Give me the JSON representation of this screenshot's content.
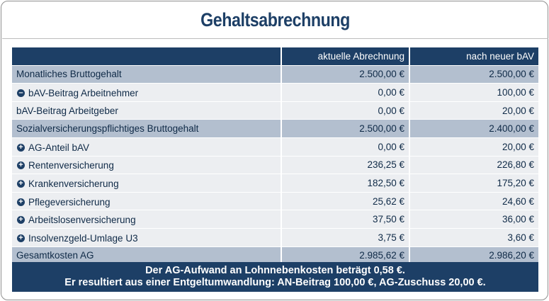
{
  "title": "Gehaltsabrechnung",
  "table": {
    "headers": [
      "",
      "aktuelle Abrechnung",
      "nach neuer bAV"
    ],
    "rows": [
      {
        "label": "Monatliches Bruttogehalt",
        "icon": "",
        "current": "2.500,00 €",
        "new": "2.500,00 €",
        "style": "hl"
      },
      {
        "label": "bAV-Beitrag Arbeitnehmer",
        "icon": "minus-icon",
        "current": "0,00 €",
        "new": "100,00 €",
        "style": "light"
      },
      {
        "label": "bAV-Beitrag Arbeitgeber",
        "icon": "",
        "current": "0,00 €",
        "new": "20,00 €",
        "style": "light"
      },
      {
        "label": "Sozialversicherungspflichtiges Bruttogehalt",
        "icon": "",
        "current": "2.500,00 €",
        "new": "2.400,00 €",
        "style": "hl"
      },
      {
        "label": "AG-Anteil bAV",
        "icon": "plus-icon",
        "current": "0,00 €",
        "new": "20,00 €",
        "style": "light"
      },
      {
        "label": "Rentenversicherung",
        "icon": "plus-icon",
        "current": "236,25 €",
        "new": "226,80 €",
        "style": "light"
      },
      {
        "label": "Krankenversicherung",
        "icon": "plus-icon",
        "current": "182,50 €",
        "new": "175,20 €",
        "style": "light"
      },
      {
        "label": "Pflegeversicherung",
        "icon": "plus-icon",
        "current": "25,62 €",
        "new": "24,60 €",
        "style": "light"
      },
      {
        "label": "Arbeitslosenversicherung",
        "icon": "plus-icon",
        "current": "37,50 €",
        "new": "36,00 €",
        "style": "light"
      },
      {
        "label": "Insolvenzgeld-Umlage U3",
        "icon": "plus-icon",
        "current": "3,75 €",
        "new": "3,60 €",
        "style": "light"
      },
      {
        "label": "Gesamtkosten AG",
        "icon": "",
        "current": "2.985,62 €",
        "new": "2.986,20 €",
        "style": "hl"
      }
    ]
  },
  "footer": {
    "line1": "Der AG-Aufwand an Lohnnebenkosten beträgt 0,58 €.",
    "line2": "Er resultiert aus einer Entgeltumwandlung: AN-Beitrag 100,00 €, AG-Zuschuss 20,00 €."
  },
  "colors": {
    "navy": "#1d3f66",
    "highlight": "#b3bfcf",
    "light": "#eceef1"
  }
}
